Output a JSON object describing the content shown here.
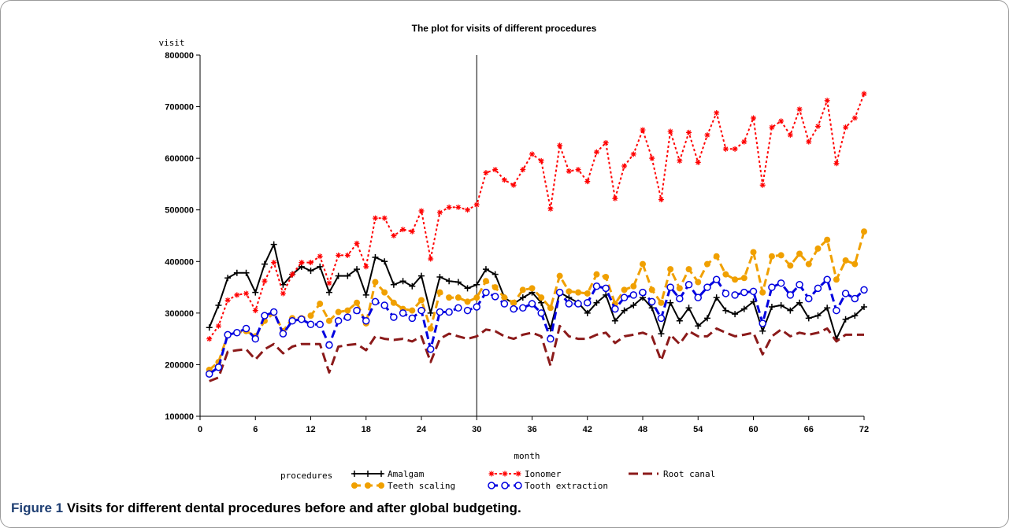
{
  "chart_data": {
    "type": "line",
    "title": "The plot for visits of different procedures",
    "xlabel": "month",
    "ylabel": "visit",
    "xlim": [
      0,
      72
    ],
    "ylim": [
      100000,
      800000
    ],
    "xticks": [
      0,
      6,
      12,
      18,
      24,
      30,
      36,
      42,
      48,
      54,
      60,
      66,
      72
    ],
    "yticks": [
      100000,
      200000,
      300000,
      400000,
      500000,
      600000,
      700000,
      800000
    ],
    "reference_line_x": 30,
    "legend_title": "procedures",
    "legend_position": "bottom",
    "x": [
      1,
      2,
      3,
      4,
      5,
      6,
      7,
      8,
      9,
      10,
      11,
      12,
      13,
      14,
      15,
      16,
      17,
      18,
      19,
      20,
      21,
      22,
      23,
      24,
      25,
      26,
      27,
      28,
      29,
      30,
      31,
      32,
      33,
      34,
      35,
      36,
      37,
      38,
      39,
      40,
      41,
      42,
      43,
      44,
      45,
      46,
      47,
      48,
      49,
      50,
      51,
      52,
      53,
      54,
      55,
      56,
      57,
      58,
      59,
      60,
      61,
      62,
      63,
      64,
      65,
      66,
      67,
      68,
      69,
      70,
      71,
      72
    ],
    "series": [
      {
        "name": "Amalgam",
        "color": "#000000",
        "dash": "",
        "marker": "plus",
        "width": 2,
        "values": [
          272000,
          315000,
          368000,
          378000,
          378000,
          340000,
          395000,
          433000,
          355000,
          375000,
          390000,
          382000,
          390000,
          340000,
          372000,
          372000,
          385000,
          335000,
          408000,
          400000,
          355000,
          362000,
          352000,
          372000,
          300000,
          370000,
          362000,
          360000,
          348000,
          355000,
          385000,
          375000,
          330000,
          318000,
          330000,
          340000,
          320000,
          270000,
          340000,
          330000,
          320000,
          300000,
          320000,
          335000,
          285000,
          305000,
          315000,
          330000,
          310000,
          260000,
          320000,
          285000,
          310000,
          275000,
          290000,
          330000,
          305000,
          298000,
          308000,
          322000,
          265000,
          312000,
          315000,
          305000,
          320000,
          290000,
          295000,
          310000,
          250000,
          288000,
          295000,
          312000
        ]
      },
      {
        "name": "Ionomer",
        "color": "#ff0000",
        "dash": "3,3",
        "marker": "star",
        "width": 2,
        "values": [
          250000,
          275000,
          325000,
          335000,
          338000,
          305000,
          362000,
          398000,
          338000,
          375000,
          398000,
          398000,
          410000,
          358000,
          412000,
          412000,
          435000,
          390000,
          484000,
          484000,
          450000,
          462000,
          458000,
          498000,
          405000,
          495000,
          505000,
          505000,
          500000,
          510000,
          572000,
          578000,
          558000,
          548000,
          578000,
          608000,
          595000,
          502000,
          625000,
          575000,
          578000,
          555000,
          612000,
          630000,
          522000,
          585000,
          608000,
          655000,
          600000,
          520000,
          652000,
          595000,
          650000,
          592000,
          645000,
          688000,
          618000,
          618000,
          632000,
          678000,
          548000,
          660000,
          672000,
          645000,
          695000,
          632000,
          662000,
          712000,
          590000,
          660000,
          678000,
          725000
        ]
      },
      {
        "name": "Root canal",
        "color": "#8b1a1a",
        "dash": "12,6",
        "marker": "none",
        "width": 3,
        "values": [
          168000,
          175000,
          225000,
          228000,
          230000,
          210000,
          230000,
          240000,
          222000,
          235000,
          240000,
          240000,
          240000,
          185000,
          235000,
          238000,
          240000,
          228000,
          255000,
          250000,
          248000,
          250000,
          245000,
          255000,
          205000,
          250000,
          260000,
          255000,
          250000,
          255000,
          268000,
          265000,
          255000,
          250000,
          258000,
          262000,
          255000,
          198000,
          275000,
          255000,
          250000,
          250000,
          258000,
          262000,
          242000,
          255000,
          258000,
          262000,
          255000,
          208000,
          258000,
          240000,
          265000,
          255000,
          255000,
          270000,
          262000,
          255000,
          258000,
          262000,
          220000,
          255000,
          268000,
          255000,
          262000,
          258000,
          262000,
          270000,
          245000,
          258000,
          258000,
          258000
        ]
      },
      {
        "name": "Teeth scaling",
        "color": "#f0a000",
        "dash": "10,5",
        "marker": "dot",
        "width": 3,
        "values": [
          190000,
          205000,
          258000,
          262000,
          265000,
          255000,
          285000,
          300000,
          265000,
          290000,
          290000,
          295000,
          318000,
          285000,
          302000,
          305000,
          320000,
          280000,
          360000,
          340000,
          320000,
          308000,
          305000,
          325000,
          270000,
          340000,
          330000,
          330000,
          322000,
          330000,
          362000,
          350000,
          330000,
          320000,
          345000,
          348000,
          330000,
          310000,
          372000,
          342000,
          340000,
          338000,
          375000,
          370000,
          318000,
          345000,
          352000,
          395000,
          345000,
          320000,
          385000,
          348000,
          385000,
          360000,
          395000,
          410000,
          375000,
          365000,
          368000,
          418000,
          340000,
          410000,
          412000,
          392000,
          415000,
          395000,
          425000,
          442000,
          365000,
          402000,
          395000,
          458000
        ]
      },
      {
        "name": "Tooth extraction",
        "color": "#0000e0",
        "dash": "10,5",
        "marker": "circle",
        "width": 3,
        "values": [
          182000,
          195000,
          258000,
          262000,
          270000,
          250000,
          295000,
          302000,
          260000,
          285000,
          288000,
          278000,
          278000,
          238000,
          285000,
          292000,
          305000,
          285000,
          322000,
          315000,
          292000,
          300000,
          290000,
          305000,
          230000,
          302000,
          302000,
          310000,
          305000,
          312000,
          340000,
          332000,
          318000,
          308000,
          310000,
          318000,
          300000,
          250000,
          340000,
          318000,
          318000,
          320000,
          352000,
          348000,
          308000,
          330000,
          335000,
          340000,
          322000,
          290000,
          350000,
          328000,
          355000,
          330000,
          350000,
          365000,
          338000,
          335000,
          340000,
          342000,
          280000,
          350000,
          358000,
          335000,
          355000,
          328000,
          348000,
          365000,
          305000,
          338000,
          328000,
          345000
        ]
      }
    ]
  },
  "caption": {
    "label": "Figure 1",
    "text": " Visits for different dental procedures before and after global budgeting."
  }
}
